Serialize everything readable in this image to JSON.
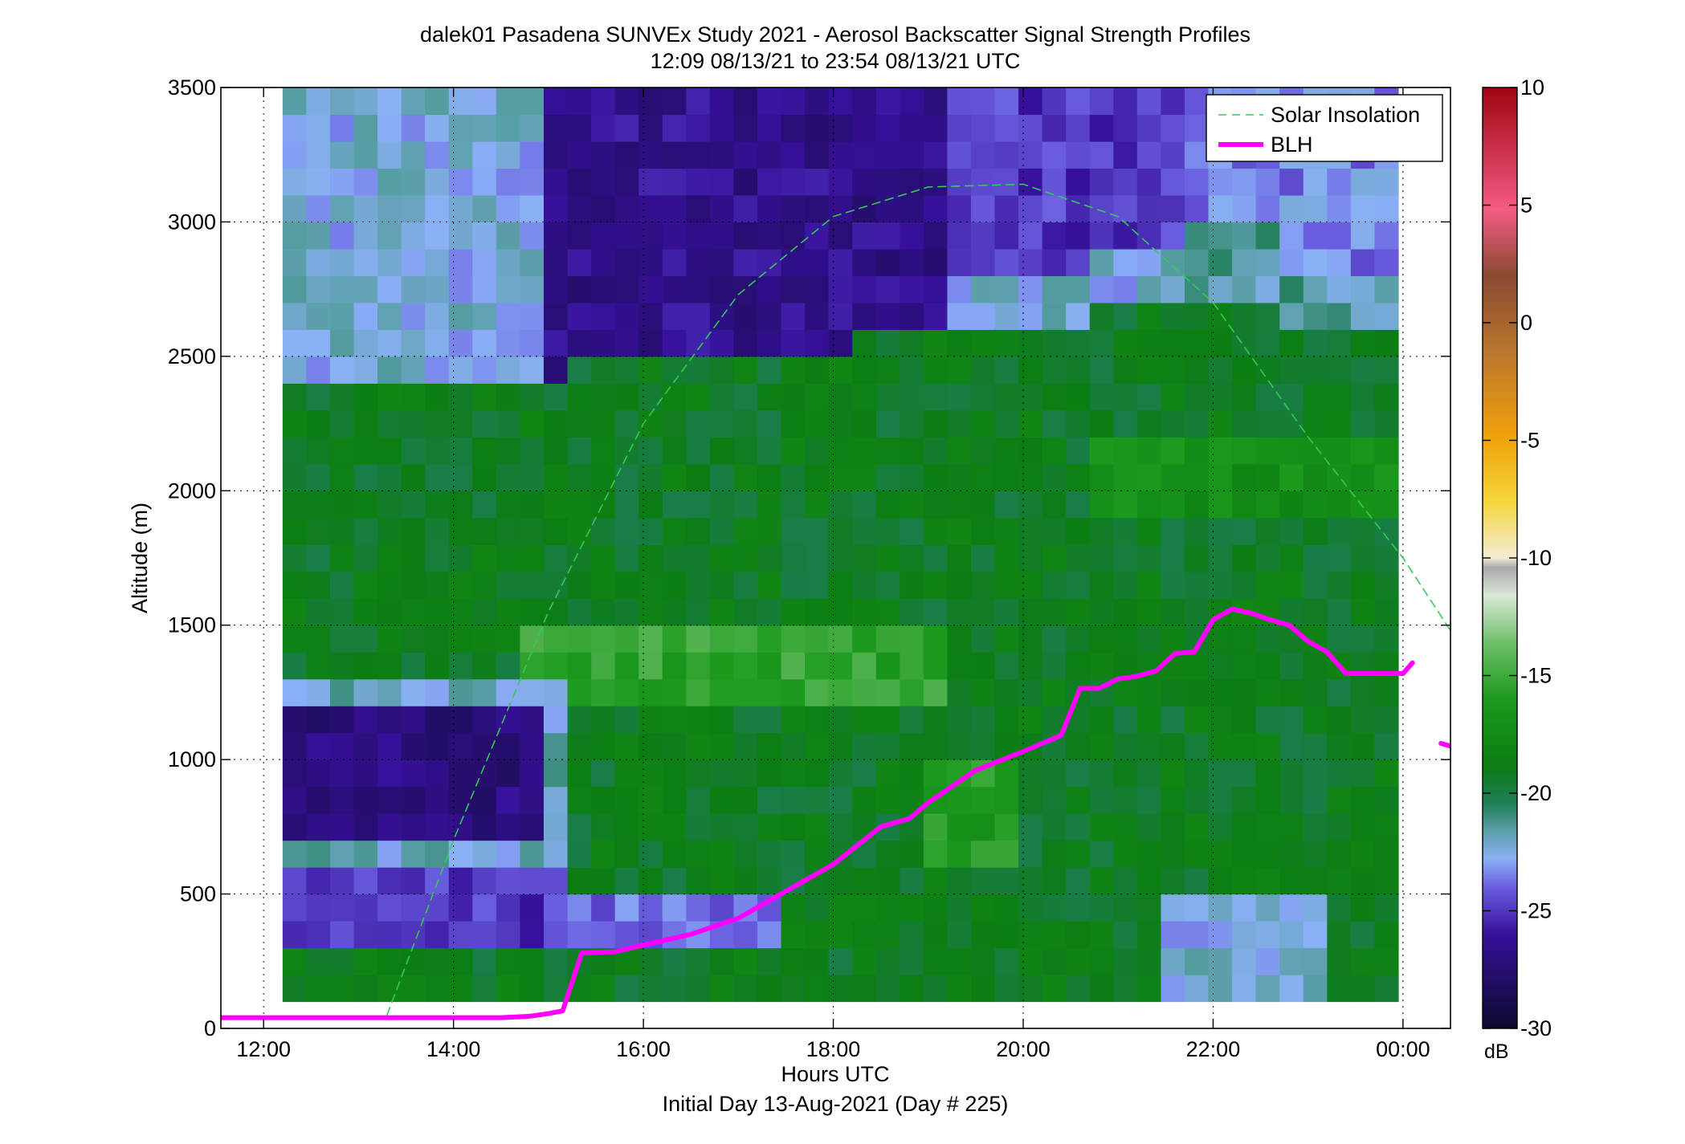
{
  "chart_data": {
    "type": "heatmap",
    "title": "dalek01 Pasadena SUNVEx Study 2021 - Aerosol Backscatter Signal Strength Profiles",
    "subtitle": "12:09 08/13/21 to 23:54 08/13/21  UTC",
    "xlabel": "Hours UTC",
    "footer": "Initial Day 13-Aug-2021 (Day # 225)",
    "ylabel": "Altitude (m)",
    "x_unit": "hours UTC",
    "xlim": [
      11.55,
      24.5
    ],
    "ylim": [
      0,
      3500
    ],
    "x_ticks": [
      12,
      14,
      16,
      18,
      20,
      22,
      24
    ],
    "x_tick_labels": [
      "12:00",
      "14:00",
      "16:00",
      "18:00",
      "20:00",
      "22:00",
      "00:00"
    ],
    "y_ticks": [
      0,
      500,
      1000,
      1500,
      2000,
      2500,
      3000,
      3500
    ],
    "y_tick_labels": [
      "0",
      "500",
      "1000",
      "1500",
      "2000",
      "2500",
      "3000",
      "3500"
    ],
    "grid": "dotted",
    "legend_position": "top-right",
    "colorbar": {
      "label": "dB",
      "range": [
        -30,
        10
      ],
      "ticks": [
        10,
        5,
        0,
        -5,
        -10,
        -15,
        -20,
        -25,
        -30
      ],
      "tick_labels": [
        "10",
        "5",
        "0",
        "-5",
        "-10",
        "-15",
        "-20",
        "-25",
        "-30"
      ]
    },
    "heatmap": {
      "x_start": 12.2,
      "x_end": 23.9,
      "x_step": 0.25,
      "y_start": 100,
      "y_end": 3500,
      "y_step": 100,
      "comment_free": true
    },
    "series": [
      {
        "name": "Solar Insolation",
        "style": "dashed",
        "color": "#33cc55",
        "x": [
          13.3,
          14.0,
          15.0,
          16.0,
          17.0,
          18.0,
          19.0,
          20.0,
          21.0,
          22.0,
          23.0,
          24.0,
          24.5
        ],
        "y": [
          50,
          700,
          1550,
          2250,
          2730,
          3020,
          3130,
          3140,
          3020,
          2700,
          2200,
          1750,
          1480
        ]
      },
      {
        "name": "BLH",
        "style": "solid",
        "color": "#ff00ff",
        "x": [
          11.55,
          12.0,
          13.0,
          14.0,
          14.5,
          14.8,
          15.0,
          15.15,
          15.35,
          15.7,
          16.0,
          16.5,
          17.0,
          17.5,
          18.0,
          18.5,
          18.8,
          19.0,
          19.5,
          20.0,
          20.2,
          20.4,
          20.6,
          20.8,
          21.0,
          21.2,
          21.4,
          21.6,
          21.8,
          22.0,
          22.2,
          22.4,
          22.6,
          22.8,
          23.0,
          23.2,
          23.4,
          23.6,
          23.8,
          24.0,
          24.1
        ],
        "y": [
          40,
          40,
          40,
          40,
          40,
          45,
          55,
          65,
          280,
          285,
          310,
          350,
          410,
          510,
          610,
          750,
          780,
          840,
          960,
          1030,
          1060,
          1090,
          1265,
          1265,
          1300,
          1310,
          1330,
          1395,
          1400,
          1520,
          1560,
          1545,
          1520,
          1500,
          1440,
          1400,
          1320,
          1320,
          1320,
          1320,
          1360
        ]
      },
      {
        "name": "BLH",
        "style": "solid",
        "color": "#ff00ff",
        "x": [
          24.4,
          24.5
        ],
        "y": [
          1060,
          1050
        ]
      }
    ],
    "legend": [
      "Solar Insolation",
      "BLH"
    ]
  }
}
